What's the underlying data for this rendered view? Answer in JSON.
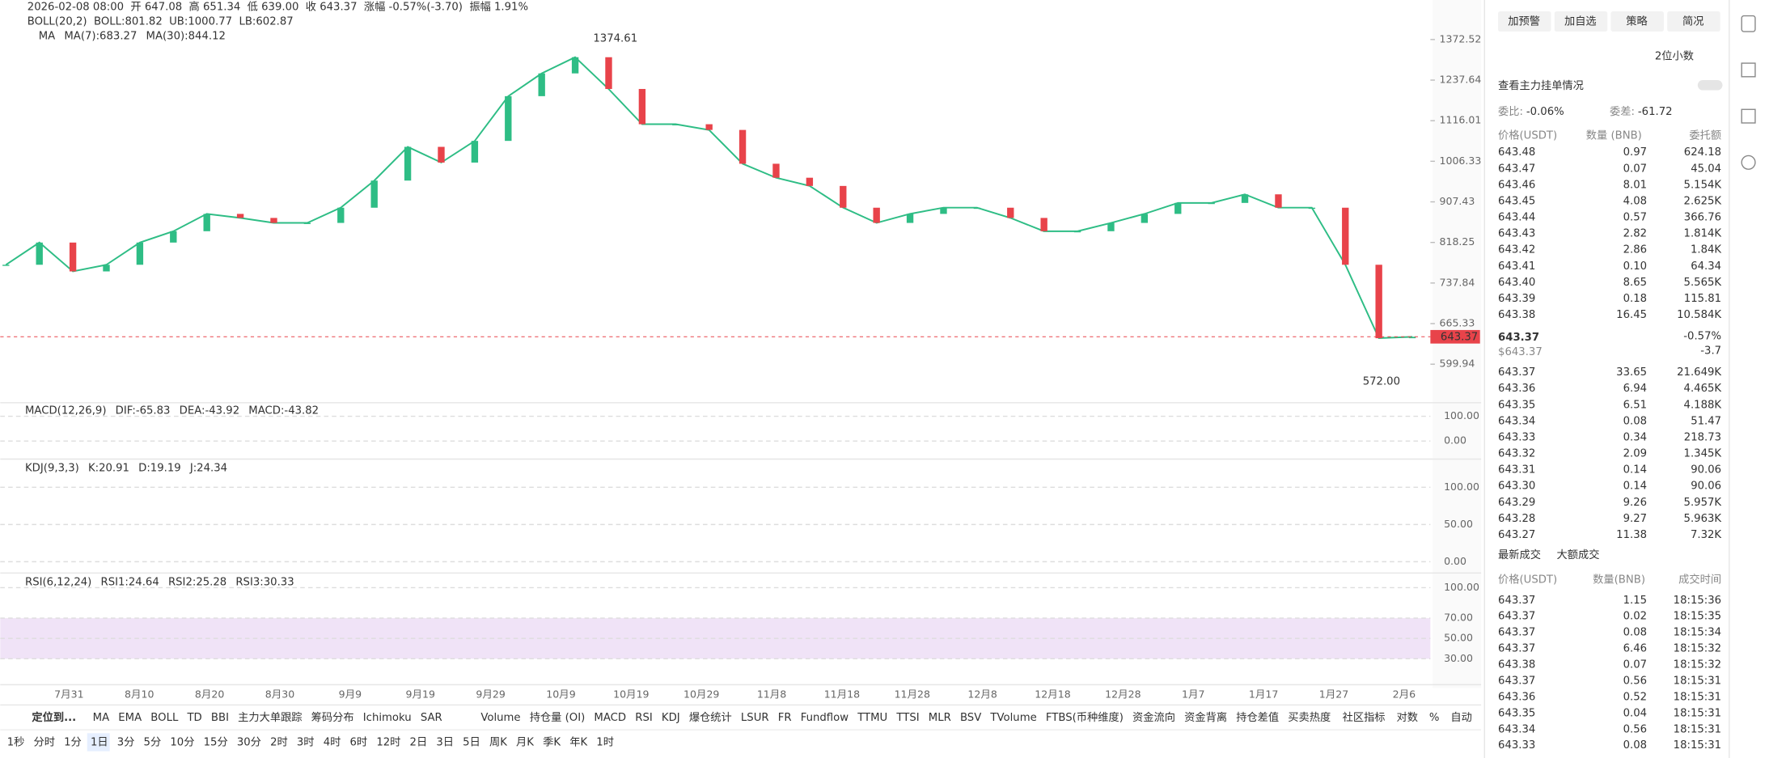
{
  "header": {
    "datetime": "2026-02-08 08:00",
    "open": "开 647.08",
    "high": "高 651.34",
    "low": "低 639.00",
    "close": "收 643.37",
    "change": "涨幅 -0.57%(-3.70)",
    "amplitude": "振幅 1.91%",
    "boll": [
      "BOLL(20,2)",
      "BOLL:801.82",
      "UB:1000.77",
      "LB:602.87"
    ],
    "ma": [
      "MA",
      "MA(7):683.27",
      "MA(30):844.12"
    ]
  },
  "chart_data": {
    "type": "line",
    "color": "#2ebd85",
    "values": [
      773,
      818,
      760,
      773,
      818,
      842,
      880,
      871,
      860,
      860,
      894,
      958,
      1044,
      1003,
      1060,
      1188,
      1259,
      1312,
      1210,
      1106,
      1106,
      1090,
      1000,
      965,
      945,
      894,
      860,
      880,
      894,
      894,
      871,
      842,
      842,
      860,
      880,
      905,
      905,
      925,
      894,
      894,
      773,
      641,
      643.37
    ],
    "ylim": [
      547,
      1518
    ],
    "log": true,
    "yticks": [
      1372.52,
      1237.64,
      1116.01,
      1006.33,
      907.43,
      818.25,
      737.84,
      665.33,
      599.94
    ],
    "xaxis_labels": [
      "7月31",
      "8月10",
      "8月20",
      "8月30",
      "9月9",
      "9月19",
      "9月29",
      "10月9",
      "10月19",
      "10月29",
      "11月8",
      "11月18",
      "11月28",
      "12月8",
      "12月18",
      "12月28",
      "1月7",
      "1月17",
      "1月27",
      "2月6"
    ],
    "annotations": {
      "high": "1374.61",
      "low": "572.00",
      "last": "643.37"
    }
  },
  "panels": [
    {
      "title": [
        "MACD(12,26,9)",
        "DIF:-65.83",
        "DEA:-43.92",
        "MACD:-43.82"
      ],
      "colors": [
        "#555",
        "#2ebd85",
        "#f0a30a",
        "#d63384"
      ],
      "axis": [
        "100.00",
        "0.00"
      ]
    },
    {
      "title": [
        "KDJ(9,3,3)",
        "K:20.91",
        "D:19.19",
        "J:24.34"
      ],
      "colors": [
        "#555",
        "#2ebd85",
        "#f0a30a",
        "#d63384"
      ],
      "axis": [
        "100.00",
        "50.00",
        "0.00"
      ]
    },
    {
      "title": [
        "RSI(6,12,24)",
        "RSI1:24.64",
        "RSI2:25.28",
        "RSI3:30.33"
      ],
      "colors": [
        "#555",
        "#2ebd85",
        "#f0a30a",
        "#d63384"
      ],
      "axis": [
        "100.00",
        "70.00",
        "50.00",
        "30.00"
      ]
    }
  ],
  "toolbar": {
    "locate": "定位到...",
    "left": [
      "MA",
      "EMA",
      "BOLL",
      "TD",
      "BBI",
      "主力大单跟踪",
      "筹码分布",
      "Ichimoku",
      "SAR"
    ],
    "right": [
      "Volume",
      "持仓量 (OI)",
      "MACD",
      "RSI",
      "KDJ",
      "爆仓统计",
      "LSUR",
      "FR",
      "Fundflow",
      "TTMU",
      "TTSI",
      "MLR",
      "BSV",
      "TVolume",
      "FTBS(币种维度)",
      "资金流向",
      "资金背离",
      "持仓差值",
      "买卖热度"
    ],
    "tools": [
      "社区指标",
      "对数",
      "%",
      "自动"
    ],
    "intervals": [
      "1秒",
      "分时",
      "1分",
      "1日",
      "3分",
      "5分",
      "10分",
      "15分",
      "30分",
      "2时",
      "3时",
      "4时",
      "6时",
      "12时",
      "2日",
      "3日",
      "5日",
      "周K",
      "月K",
      "季K",
      "年K",
      "1时"
    ],
    "active_interval": "1日"
  },
  "sidebar": {
    "buttons": [
      "加预警",
      "加自选",
      "策略",
      "简况"
    ],
    "decimals": "2位小数",
    "main_orders": "查看主力挂单情况",
    "ratio_label": "委比:",
    "ratio": "-0.06%",
    "diff_label": "委差:",
    "diff": "-61.72",
    "book_headers": [
      "价格(USDT)",
      "数量 (BNB)",
      "委托额"
    ],
    "asks": [
      [
        "643.48",
        "0.97",
        "624.18"
      ],
      [
        "643.47",
        "0.07",
        "45.04"
      ],
      [
        "643.46",
        "8.01",
        "5.154K"
      ],
      [
        "643.45",
        "4.08",
        "2.625K"
      ],
      [
        "643.44",
        "0.57",
        "366.76"
      ],
      [
        "643.43",
        "2.82",
        "1.814K"
      ],
      [
        "643.42",
        "2.86",
        "1.84K"
      ],
      [
        "643.41",
        "0.10",
        "64.34"
      ],
      [
        "643.40",
        "8.65",
        "5.565K"
      ],
      [
        "643.39",
        "0.18",
        "115.81"
      ],
      [
        "643.38",
        "16.45",
        "10.584K"
      ]
    ],
    "mid": {
      "price": "643.37",
      "usd": "$643.37",
      "pct": "-0.57%",
      "chg": "-3.7"
    },
    "bids": [
      [
        "643.37",
        "33.65",
        "21.649K"
      ],
      [
        "643.36",
        "6.94",
        "4.465K"
      ],
      [
        "643.35",
        "6.51",
        "4.188K"
      ],
      [
        "643.34",
        "0.08",
        "51.47"
      ],
      [
        "643.33",
        "0.34",
        "218.73"
      ],
      [
        "643.32",
        "2.09",
        "1.345K"
      ],
      [
        "643.31",
        "0.14",
        "90.06"
      ],
      [
        "643.30",
        "0.14",
        "90.06"
      ],
      [
        "643.29",
        "9.26",
        "5.957K"
      ],
      [
        "643.28",
        "9.27",
        "5.963K"
      ],
      [
        "643.27",
        "11.38",
        "7.32K"
      ]
    ],
    "trade_tabs": [
      "最新成交",
      "大额成交"
    ],
    "trade_headers": [
      "价格(USDT)",
      "数量(BNB)",
      "成交时间"
    ],
    "trades": [
      {
        "row": [
          "643.37",
          "1.15",
          "18:15:36"
        ],
        "side": "sell"
      },
      {
        "row": [
          "643.37",
          "0.02",
          "18:15:35"
        ],
        "side": "sell"
      },
      {
        "row": [
          "643.37",
          "0.08",
          "18:15:34"
        ],
        "side": "sell"
      },
      {
        "row": [
          "643.37",
          "6.46",
          "18:15:32"
        ],
        "side": "sell"
      },
      {
        "row": [
          "643.38",
          "0.07",
          "18:15:32"
        ],
        "side": "buy"
      },
      {
        "row": [
          "643.37",
          "0.56",
          "18:15:31"
        ],
        "side": "buy"
      },
      {
        "row": [
          "643.36",
          "0.52",
          "18:15:31"
        ],
        "side": "buy"
      },
      {
        "row": [
          "643.35",
          "0.04",
          "18:15:31"
        ],
        "side": "buy"
      },
      {
        "row": [
          "643.34",
          "0.56",
          "18:15:31"
        ],
        "side": "buy"
      },
      {
        "row": [
          "643.33",
          "0.08",
          "18:15:31"
        ],
        "side": "sell"
      }
    ]
  }
}
